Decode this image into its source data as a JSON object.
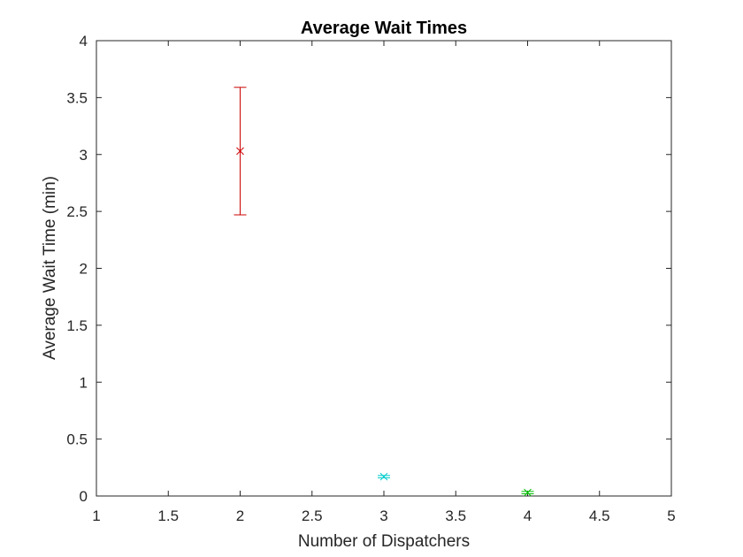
{
  "chart_data": {
    "type": "scatter",
    "title": "Average Wait Times",
    "xlabel": "Number of Dispatchers",
    "ylabel": "Average Wait Time (min)",
    "xlim": [
      1,
      5
    ],
    "ylim": [
      0,
      4
    ],
    "xticks": [
      "1",
      "1.5",
      "2",
      "2.5",
      "3",
      "3.5",
      "4",
      "4.5",
      "5"
    ],
    "yticks": [
      "0",
      "0.5",
      "1",
      "1.5",
      "2",
      "2.5",
      "3",
      "3.5",
      "4"
    ],
    "grid": false,
    "points": [
      {
        "x": 2,
        "y": 3.03,
        "err_low": 2.47,
        "err_high": 3.59,
        "color": "#cc0000",
        "marker": "x"
      },
      {
        "x": 3,
        "y": 0.17,
        "err_low": 0.16,
        "err_high": 0.18,
        "color": "#00cccc",
        "marker": "x"
      },
      {
        "x": 4,
        "y": 0.03,
        "err_low": 0.02,
        "err_high": 0.04,
        "color": "#00bb00",
        "marker": "x"
      }
    ]
  }
}
